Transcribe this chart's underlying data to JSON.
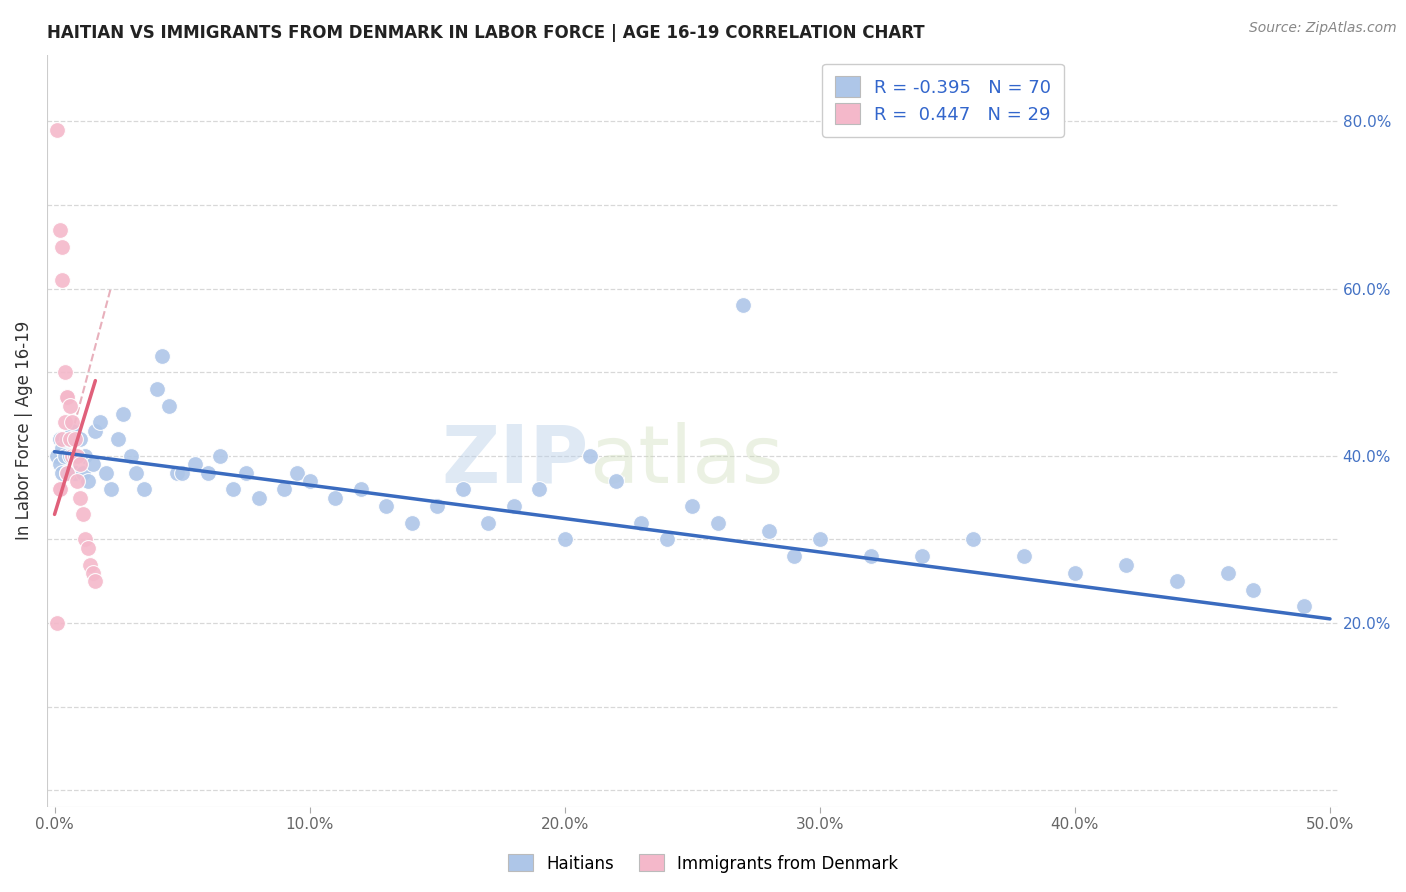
{
  "title": "HAITIAN VS IMMIGRANTS FROM DENMARK IN LABOR FORCE | AGE 16-19 CORRELATION CHART",
  "source": "Source: ZipAtlas.com",
  "ylabel": "In Labor Force | Age 16-19",
  "xlim": [
    -0.003,
    0.503
  ],
  "ylim": [
    -0.02,
    0.88
  ],
  "xticks": [
    0.0,
    0.1,
    0.2,
    0.3,
    0.4,
    0.5
  ],
  "xticklabels": [
    "0.0%",
    "10.0%",
    "20.0%",
    "30.0%",
    "40.0%",
    "50.0%"
  ],
  "yticks_right": [
    0.2,
    0.4,
    0.6,
    0.8
  ],
  "yticklabels_right": [
    "20.0%",
    "40.0%",
    "60.0%",
    "80.0%"
  ],
  "background_color": "#ffffff",
  "grid_color": "#d8d8d8",
  "watermark_zip": "ZIP",
  "watermark_atlas": "atlas",
  "legend_R1": "-0.395",
  "legend_N1": "70",
  "legend_R2": "0.447",
  "legend_N2": "29",
  "blue_color": "#aec6e8",
  "pink_color": "#f4b8ca",
  "blue_line_color": "#3a6bbf",
  "pink_line_color": "#e0607a",
  "ref_line_color": "#e8b0bc",
  "haitians_x": [
    0.001,
    0.002,
    0.002,
    0.003,
    0.003,
    0.004,
    0.005,
    0.005,
    0.006,
    0.007,
    0.008,
    0.009,
    0.01,
    0.011,
    0.012,
    0.013,
    0.015,
    0.016,
    0.018,
    0.02,
    0.022,
    0.025,
    0.027,
    0.03,
    0.032,
    0.035,
    0.04,
    0.042,
    0.045,
    0.048,
    0.05,
    0.055,
    0.06,
    0.065,
    0.07,
    0.075,
    0.08,
    0.09,
    0.095,
    0.1,
    0.11,
    0.12,
    0.13,
    0.14,
    0.15,
    0.16,
    0.17,
    0.18,
    0.19,
    0.2,
    0.21,
    0.22,
    0.23,
    0.24,
    0.25,
    0.26,
    0.27,
    0.28,
    0.29,
    0.3,
    0.32,
    0.34,
    0.36,
    0.38,
    0.4,
    0.42,
    0.44,
    0.46,
    0.47,
    0.49
  ],
  "haitians_y": [
    0.4,
    0.42,
    0.39,
    0.38,
    0.41,
    0.4,
    0.38,
    0.42,
    0.4,
    0.43,
    0.38,
    0.4,
    0.42,
    0.38,
    0.4,
    0.37,
    0.39,
    0.43,
    0.44,
    0.38,
    0.36,
    0.42,
    0.45,
    0.4,
    0.38,
    0.36,
    0.48,
    0.52,
    0.46,
    0.38,
    0.38,
    0.39,
    0.38,
    0.4,
    0.36,
    0.38,
    0.35,
    0.36,
    0.38,
    0.37,
    0.35,
    0.36,
    0.34,
    0.32,
    0.34,
    0.36,
    0.32,
    0.34,
    0.36,
    0.3,
    0.4,
    0.37,
    0.32,
    0.3,
    0.34,
    0.32,
    0.58,
    0.31,
    0.28,
    0.3,
    0.28,
    0.28,
    0.3,
    0.28,
    0.26,
    0.27,
    0.25,
    0.26,
    0.24,
    0.22
  ],
  "denmark_x": [
    0.001,
    0.001,
    0.002,
    0.002,
    0.002,
    0.003,
    0.003,
    0.003,
    0.004,
    0.004,
    0.005,
    0.005,
    0.005,
    0.006,
    0.006,
    0.007,
    0.007,
    0.008,
    0.008,
    0.009,
    0.009,
    0.01,
    0.01,
    0.011,
    0.012,
    0.013,
    0.014,
    0.015,
    0.016
  ],
  "denmark_y": [
    0.2,
    0.79,
    0.36,
    0.67,
    0.36,
    0.65,
    0.61,
    0.42,
    0.5,
    0.44,
    0.47,
    0.47,
    0.38,
    0.46,
    0.42,
    0.44,
    0.4,
    0.42,
    0.4,
    0.4,
    0.37,
    0.39,
    0.35,
    0.33,
    0.3,
    0.29,
    0.27,
    0.26,
    0.25
  ],
  "blue_regression_x0": 0.0,
  "blue_regression_y0": 0.405,
  "blue_regression_x1": 0.5,
  "blue_regression_y1": 0.205,
  "pink_regression_x0": 0.0,
  "pink_regression_y0": 0.33,
  "pink_regression_x1": 0.016,
  "pink_regression_y1": 0.49,
  "ref_line_x0": 0.001,
  "ref_line_y0": 0.36,
  "ref_line_x1": 0.022,
  "ref_line_y1": 0.6
}
